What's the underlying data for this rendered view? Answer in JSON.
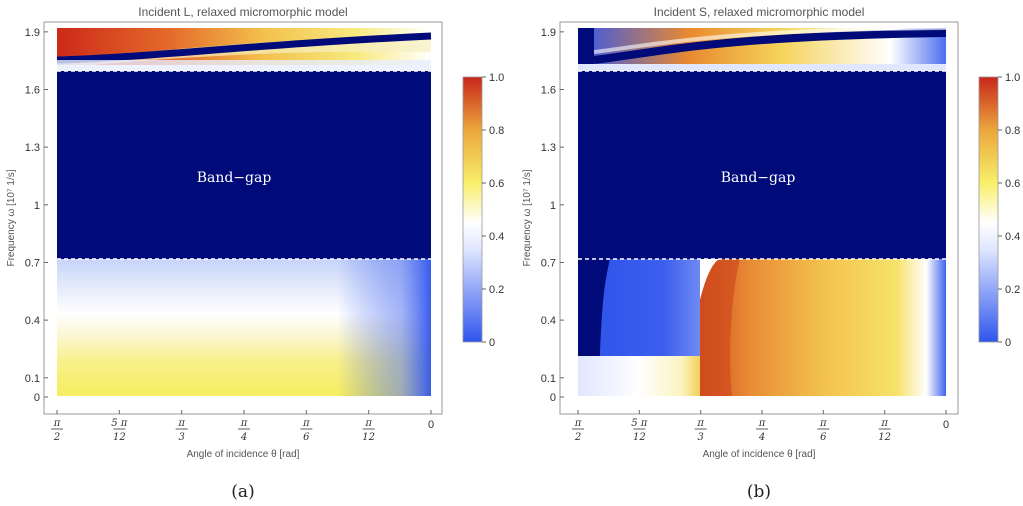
{
  "chart_data": [
    {
      "type": "heatmap",
      "title": "Incident L, relaxed micromorphic model",
      "xlabel": "Angle of incidence θ [rad]",
      "ylabel": "Frequency ω [10⁷ 1/s]",
      "yticks": [
        "0",
        "0.1",
        "0.4",
        "0.7",
        "1",
        "1.3",
        "1.6",
        "1.9"
      ],
      "xticks": [
        {
          "num": "π",
          "den": "2"
        },
        {
          "num": "5 π",
          "den": "12"
        },
        {
          "num": "π",
          "den": "3"
        },
        {
          "num": "π",
          "den": "4"
        },
        {
          "num": "π",
          "den": "6"
        },
        {
          "num": "π",
          "den": "12"
        },
        {
          "num": "0",
          "den": ""
        }
      ],
      "ylim": [
        0,
        1.92
      ],
      "band_gap": [
        0.72,
        1.69
      ],
      "annotation": "Band−gap",
      "colorbar": {
        "ticks": [
          "0",
          "0.2",
          "0.4",
          "0.6",
          "0.8",
          "1.0"
        ],
        "range": [
          0,
          1
        ]
      },
      "caption": "(a)"
    },
    {
      "type": "heatmap",
      "title": "Incident S, relaxed micromorphic model",
      "xlabel": "Angle of incidence θ [rad]",
      "ylabel": "Frequency ω [10⁷ 1/s]",
      "yticks": [
        "0",
        "0.1",
        "0.4",
        "0.7",
        "1",
        "1.3",
        "1.6",
        "1.9"
      ],
      "xticks": [
        {
          "num": "π",
          "den": "2"
        },
        {
          "num": "5 π",
          "den": "12"
        },
        {
          "num": "π",
          "den": "3"
        },
        {
          "num": "π",
          "den": "4"
        },
        {
          "num": "π",
          "den": "6"
        },
        {
          "num": "π",
          "den": "12"
        },
        {
          "num": "0",
          "den": ""
        }
      ],
      "ylim": [
        0,
        1.92
      ],
      "band_gap": [
        0.72,
        1.69
      ],
      "annotation": "Band−gap",
      "colorbar": {
        "ticks": [
          "0",
          "0.2",
          "0.4",
          "0.6",
          "0.8",
          "1.0"
        ],
        "range": [
          0,
          1
        ]
      },
      "caption": "(b)"
    }
  ],
  "colors": {
    "band_gap": "#000a78",
    "low": "#2f55ee",
    "mid": "#ffffff",
    "yellow": "#f6ee58",
    "high": "#cc2a18"
  }
}
